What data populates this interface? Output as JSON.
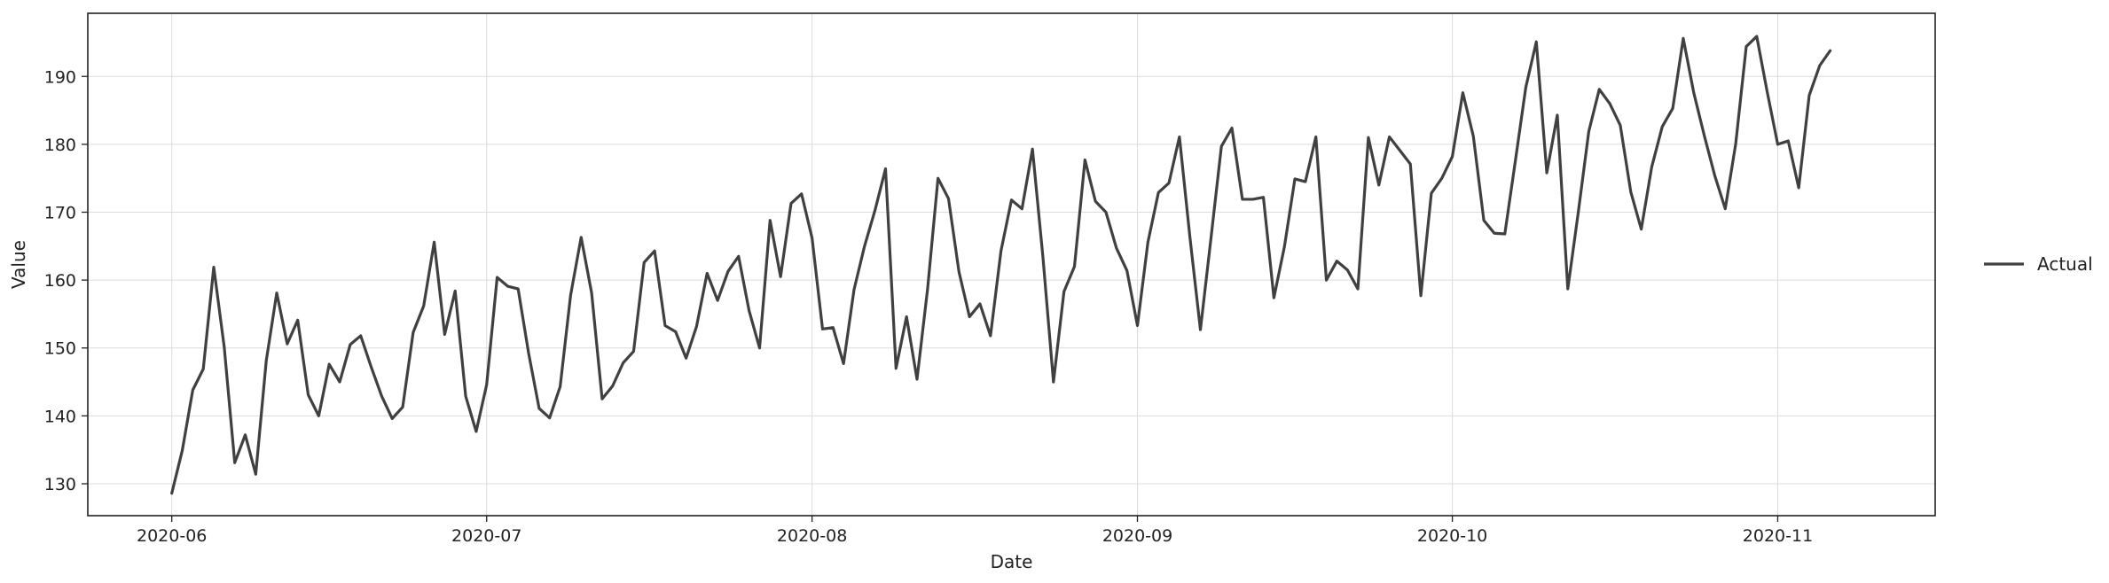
{
  "chart_data": {
    "type": "line",
    "xlabel": "Date",
    "ylabel": "Value",
    "grid": true,
    "legend_position": "right-outside",
    "x_tick_labels": [
      "2020-06",
      "2020-07",
      "2020-08",
      "2020-09",
      "2020-10",
      "2020-11"
    ],
    "x_tick_dates": [
      "2020-06-01",
      "2020-07-01",
      "2020-08-01",
      "2020-09-01",
      "2020-10-01",
      "2020-11-01"
    ],
    "xlim": [
      "2020-05-24",
      "2020-11-16"
    ],
    "y_ticks": [
      130,
      140,
      150,
      160,
      170,
      180,
      190
    ],
    "y_tick_labels": [
      "130",
      "140",
      "150",
      "160",
      "170",
      "180",
      "190"
    ],
    "ylim": [
      125.3,
      199.3
    ],
    "series": [
      {
        "name": "Actual",
        "color": "#404040",
        "x_start": "2020-06-01",
        "x_end": "2020-11-06",
        "values": [
          128.6,
          134.9,
          143.8,
          146.9,
          161.9,
          150.1,
          133.1,
          137.2,
          131.4,
          148.1,
          158.1,
          150.6,
          154.1,
          143.1,
          140.0,
          147.6,
          145.0,
          150.5,
          151.8,
          147.2,
          142.9,
          139.6,
          141.3,
          152.3,
          156.2,
          165.6,
          152.0,
          158.4,
          142.9,
          137.7,
          144.6,
          160.4,
          159.1,
          158.7,
          149.2,
          141.1,
          139.7,
          144.3,
          157.8,
          166.3,
          158.1,
          142.5,
          144.4,
          147.8,
          149.5,
          162.6,
          164.3,
          153.3,
          152.4,
          148.5,
          153.2,
          161.0,
          157.0,
          161.3,
          163.5,
          155.5,
          150.0,
          168.8,
          160.5,
          171.3,
          172.7,
          166.2,
          152.8,
          153.0,
          147.7,
          158.6,
          165.0,
          170.3,
          176.4,
          147.0,
          154.6,
          145.4,
          158.6,
          175.0,
          172.0,
          161.2,
          154.6,
          156.5,
          151.8,
          164.3,
          171.8,
          170.5,
          179.3,
          163.3,
          145.0,
          158.3,
          162.0,
          177.7,
          171.6,
          170.0,
          164.7,
          161.4,
          153.3,
          165.6,
          172.9,
          174.3,
          181.1,
          166.3,
          152.7,
          166.1,
          179.7,
          182.4,
          171.9,
          171.9,
          172.2,
          157.4,
          164.9,
          174.9,
          174.5,
          181.1,
          160.0,
          162.8,
          161.5,
          158.7,
          181.0,
          174.0,
          181.1,
          179.1,
          177.1,
          157.7,
          172.8,
          175.0,
          178.2,
          187.6,
          181.2,
          168.8,
          166.9,
          166.8,
          177.5,
          188.4,
          195.1,
          175.8,
          184.3,
          158.7,
          170.0,
          181.9,
          188.1,
          186.0,
          182.8,
          173.0,
          167.5,
          176.7,
          182.6,
          185.3,
          195.6,
          187.6,
          181.3,
          175.4,
          170.5,
          180.1,
          194.4,
          195.9,
          187.7,
          180.0,
          180.5,
          173.6,
          187.2,
          191.6,
          193.8
        ]
      }
    ]
  }
}
